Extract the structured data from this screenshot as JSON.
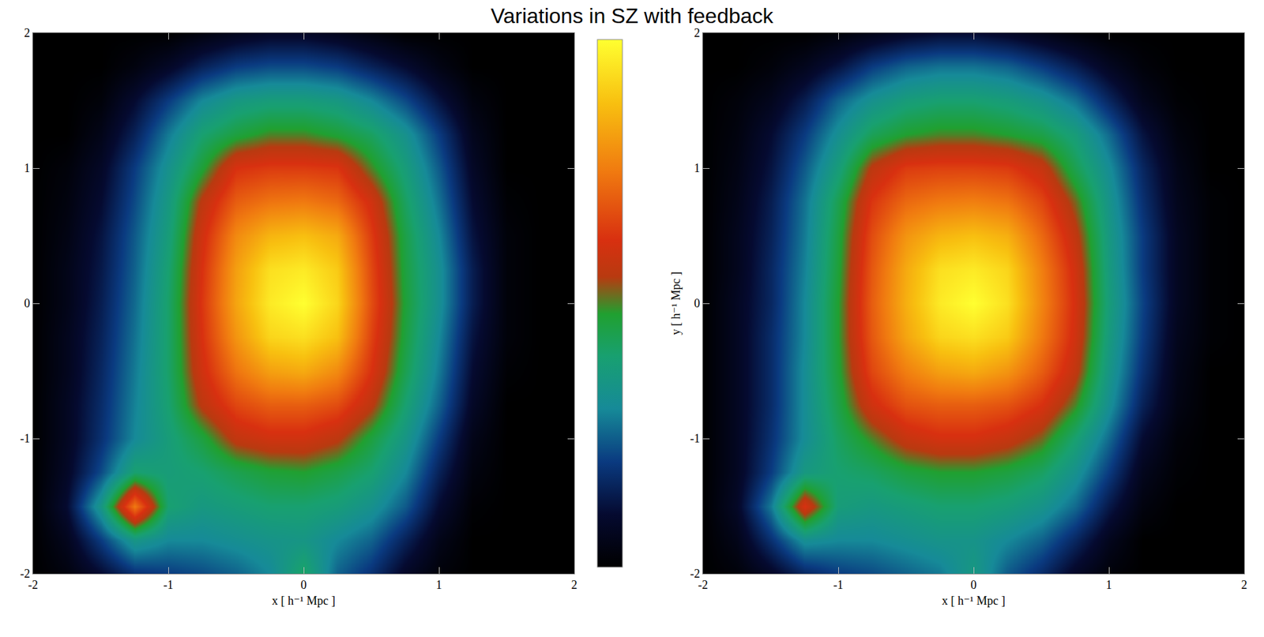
{
  "title": "Variations in SZ with feedback",
  "chart_data": [
    {
      "type": "heatmap",
      "x_label": "x [ h⁻¹ Mpc ]",
      "x": [
        -2,
        -1.75,
        -1.5,
        -1.25,
        -1,
        -0.75,
        -0.5,
        -0.25,
        0,
        0.25,
        0.5,
        0.75,
        1,
        1.25,
        1.5,
        1.75,
        2
      ],
      "y": [
        -2,
        -1.75,
        -1.5,
        -1.25,
        -1,
        -0.75,
        -0.5,
        -0.25,
        0,
        0.25,
        0.5,
        0.75,
        1,
        1.25,
        1.5,
        1.75,
        2
      ],
      "z": [
        [
          0,
          0.03,
          0.1,
          0.18,
          0.2,
          0.22,
          0.25,
          0.3,
          0.42,
          0.25,
          0.18,
          0.08,
          0.02,
          0,
          0,
          0,
          0
        ],
        [
          0,
          0.06,
          0.2,
          0.35,
          0.3,
          0.3,
          0.32,
          0.34,
          0.35,
          0.3,
          0.25,
          0.15,
          0.05,
          0,
          0,
          0,
          0
        ],
        [
          0,
          0.1,
          0.35,
          0.75,
          0.4,
          0.36,
          0.38,
          0.4,
          0.4,
          0.38,
          0.33,
          0.24,
          0.1,
          0.01,
          0,
          0,
          0
        ],
        [
          0,
          0.08,
          0.22,
          0.4,
          0.38,
          0.4,
          0.44,
          0.47,
          0.48,
          0.45,
          0.4,
          0.3,
          0.15,
          0.03,
          0,
          0,
          0
        ],
        [
          0,
          0.07,
          0.18,
          0.3,
          0.38,
          0.46,
          0.57,
          0.6,
          0.6,
          0.56,
          0.46,
          0.35,
          0.2,
          0.05,
          0,
          0,
          0
        ],
        [
          0,
          0.07,
          0.17,
          0.29,
          0.4,
          0.56,
          0.66,
          0.7,
          0.7,
          0.67,
          0.56,
          0.4,
          0.25,
          0.08,
          0,
          0,
          0
        ],
        [
          0,
          0.06,
          0.16,
          0.28,
          0.41,
          0.6,
          0.74,
          0.82,
          0.84,
          0.78,
          0.62,
          0.44,
          0.28,
          0.1,
          0.01,
          0,
          0
        ],
        [
          0,
          0.06,
          0.15,
          0.27,
          0.41,
          0.62,
          0.8,
          0.92,
          0.94,
          0.88,
          0.65,
          0.46,
          0.3,
          0.12,
          0.02,
          0,
          0
        ],
        [
          0,
          0.05,
          0.14,
          0.26,
          0.41,
          0.63,
          0.83,
          0.96,
          1.0,
          0.92,
          0.67,
          0.47,
          0.32,
          0.14,
          0.02,
          0,
          0
        ],
        [
          0,
          0.05,
          0.13,
          0.25,
          0.4,
          0.62,
          0.82,
          0.94,
          0.96,
          0.9,
          0.66,
          0.46,
          0.32,
          0.14,
          0.02,
          0,
          0
        ],
        [
          0,
          0.04,
          0.12,
          0.24,
          0.38,
          0.6,
          0.78,
          0.86,
          0.88,
          0.84,
          0.64,
          0.45,
          0.3,
          0.12,
          0.02,
          0,
          0
        ],
        [
          0,
          0.03,
          0.1,
          0.22,
          0.36,
          0.56,
          0.7,
          0.74,
          0.75,
          0.72,
          0.6,
          0.42,
          0.27,
          0.1,
          0.01,
          0,
          0
        ],
        [
          0,
          0.02,
          0.08,
          0.2,
          0.33,
          0.47,
          0.62,
          0.64,
          0.64,
          0.63,
          0.5,
          0.38,
          0.24,
          0.08,
          0,
          0,
          0
        ],
        [
          0,
          0,
          0.05,
          0.15,
          0.28,
          0.4,
          0.46,
          0.5,
          0.5,
          0.47,
          0.42,
          0.33,
          0.2,
          0.06,
          0,
          0,
          0
        ],
        [
          0,
          0,
          0.02,
          0.1,
          0.2,
          0.3,
          0.36,
          0.38,
          0.38,
          0.36,
          0.3,
          0.22,
          0.12,
          0.03,
          0,
          0,
          0
        ],
        [
          0,
          0,
          0,
          0.03,
          0.08,
          0.15,
          0.2,
          0.22,
          0.22,
          0.2,
          0.15,
          0.1,
          0.04,
          0,
          0,
          0,
          0
        ],
        [
          0,
          0,
          0,
          0,
          0,
          0.03,
          0.06,
          0.08,
          0.08,
          0.06,
          0.03,
          0,
          0,
          0,
          0,
          0,
          0
        ]
      ],
      "zlim": [
        0,
        1
      ],
      "colorbar": true,
      "xlim": [
        -2,
        2
      ],
      "ylim": [
        -2,
        2
      ],
      "xticks": [
        -2,
        -1,
        0,
        1,
        2
      ],
      "yticks": [
        -2,
        -1,
        0,
        1,
        2
      ]
    },
    {
      "type": "heatmap",
      "x_label": "x [ h⁻¹ Mpc ]",
      "y_label": "y [ h⁻¹ Mpc ]",
      "x": [
        -2,
        -1.75,
        -1.5,
        -1.25,
        -1,
        -0.75,
        -0.5,
        -0.25,
        0,
        0.25,
        0.5,
        0.75,
        1,
        1.25,
        1.5,
        1.75,
        2
      ],
      "y": [
        -2,
        -1.75,
        -1.5,
        -1.25,
        -1,
        -0.75,
        -0.5,
        -0.25,
        0,
        0.25,
        0.5,
        0.75,
        1,
        1.25,
        1.5,
        1.75,
        2
      ],
      "z": [
        [
          0,
          0.02,
          0.08,
          0.16,
          0.2,
          0.22,
          0.25,
          0.28,
          0.36,
          0.24,
          0.17,
          0.08,
          0.02,
          0,
          0,
          0,
          0
        ],
        [
          0,
          0.05,
          0.18,
          0.32,
          0.3,
          0.3,
          0.32,
          0.34,
          0.34,
          0.3,
          0.25,
          0.16,
          0.06,
          0,
          0,
          0,
          0
        ],
        [
          0,
          0.08,
          0.28,
          0.62,
          0.38,
          0.36,
          0.38,
          0.4,
          0.4,
          0.38,
          0.34,
          0.26,
          0.13,
          0.03,
          0,
          0,
          0
        ],
        [
          0,
          0.07,
          0.2,
          0.36,
          0.4,
          0.42,
          0.46,
          0.48,
          0.48,
          0.46,
          0.42,
          0.33,
          0.2,
          0.06,
          0.01,
          0,
          0
        ],
        [
          0,
          0.07,
          0.18,
          0.31,
          0.42,
          0.5,
          0.58,
          0.61,
          0.61,
          0.58,
          0.52,
          0.4,
          0.26,
          0.1,
          0.02,
          0,
          0
        ],
        [
          0,
          0.07,
          0.17,
          0.31,
          0.45,
          0.6,
          0.68,
          0.7,
          0.7,
          0.68,
          0.62,
          0.5,
          0.32,
          0.15,
          0.04,
          0,
          0
        ],
        [
          0,
          0.07,
          0.17,
          0.31,
          0.47,
          0.66,
          0.76,
          0.82,
          0.84,
          0.8,
          0.7,
          0.57,
          0.35,
          0.18,
          0.05,
          0,
          0
        ],
        [
          0,
          0.07,
          0.17,
          0.3,
          0.48,
          0.69,
          0.83,
          0.92,
          0.94,
          0.9,
          0.75,
          0.6,
          0.37,
          0.2,
          0.06,
          0.01,
          0
        ],
        [
          0,
          0.07,
          0.16,
          0.3,
          0.48,
          0.7,
          0.85,
          0.96,
          1.0,
          0.94,
          0.77,
          0.61,
          0.38,
          0.21,
          0.07,
          0.01,
          0
        ],
        [
          0,
          0.06,
          0.16,
          0.29,
          0.47,
          0.69,
          0.84,
          0.94,
          0.96,
          0.92,
          0.76,
          0.6,
          0.37,
          0.2,
          0.07,
          0.01,
          0
        ],
        [
          0,
          0.06,
          0.15,
          0.28,
          0.46,
          0.67,
          0.8,
          0.86,
          0.88,
          0.85,
          0.72,
          0.57,
          0.36,
          0.2,
          0.07,
          0.01,
          0
        ],
        [
          0,
          0.05,
          0.14,
          0.27,
          0.44,
          0.63,
          0.72,
          0.75,
          0.76,
          0.74,
          0.66,
          0.52,
          0.34,
          0.18,
          0.06,
          0.01,
          0
        ],
        [
          0,
          0.04,
          0.12,
          0.24,
          0.38,
          0.56,
          0.64,
          0.65,
          0.65,
          0.64,
          0.58,
          0.44,
          0.31,
          0.16,
          0.05,
          0,
          0
        ],
        [
          0,
          0.03,
          0.1,
          0.2,
          0.32,
          0.43,
          0.48,
          0.5,
          0.5,
          0.48,
          0.45,
          0.38,
          0.26,
          0.12,
          0.03,
          0,
          0
        ],
        [
          0,
          0.02,
          0.06,
          0.14,
          0.25,
          0.33,
          0.38,
          0.4,
          0.4,
          0.38,
          0.34,
          0.27,
          0.16,
          0.06,
          0.01,
          0,
          0
        ],
        [
          0,
          0,
          0.02,
          0.06,
          0.12,
          0.2,
          0.25,
          0.27,
          0.27,
          0.25,
          0.2,
          0.14,
          0.07,
          0.02,
          0,
          0,
          0
        ],
        [
          0,
          0,
          0,
          0,
          0.02,
          0.05,
          0.08,
          0.1,
          0.1,
          0.08,
          0.05,
          0.02,
          0,
          0,
          0,
          0,
          0
        ]
      ],
      "zlim": [
        0,
        1
      ],
      "xlim": [
        -2,
        2
      ],
      "ylim": [
        -2,
        2
      ],
      "xticks": [
        -2,
        -1,
        0,
        1,
        2
      ],
      "yticks": [
        -2,
        -1,
        0,
        1,
        2
      ]
    }
  ]
}
